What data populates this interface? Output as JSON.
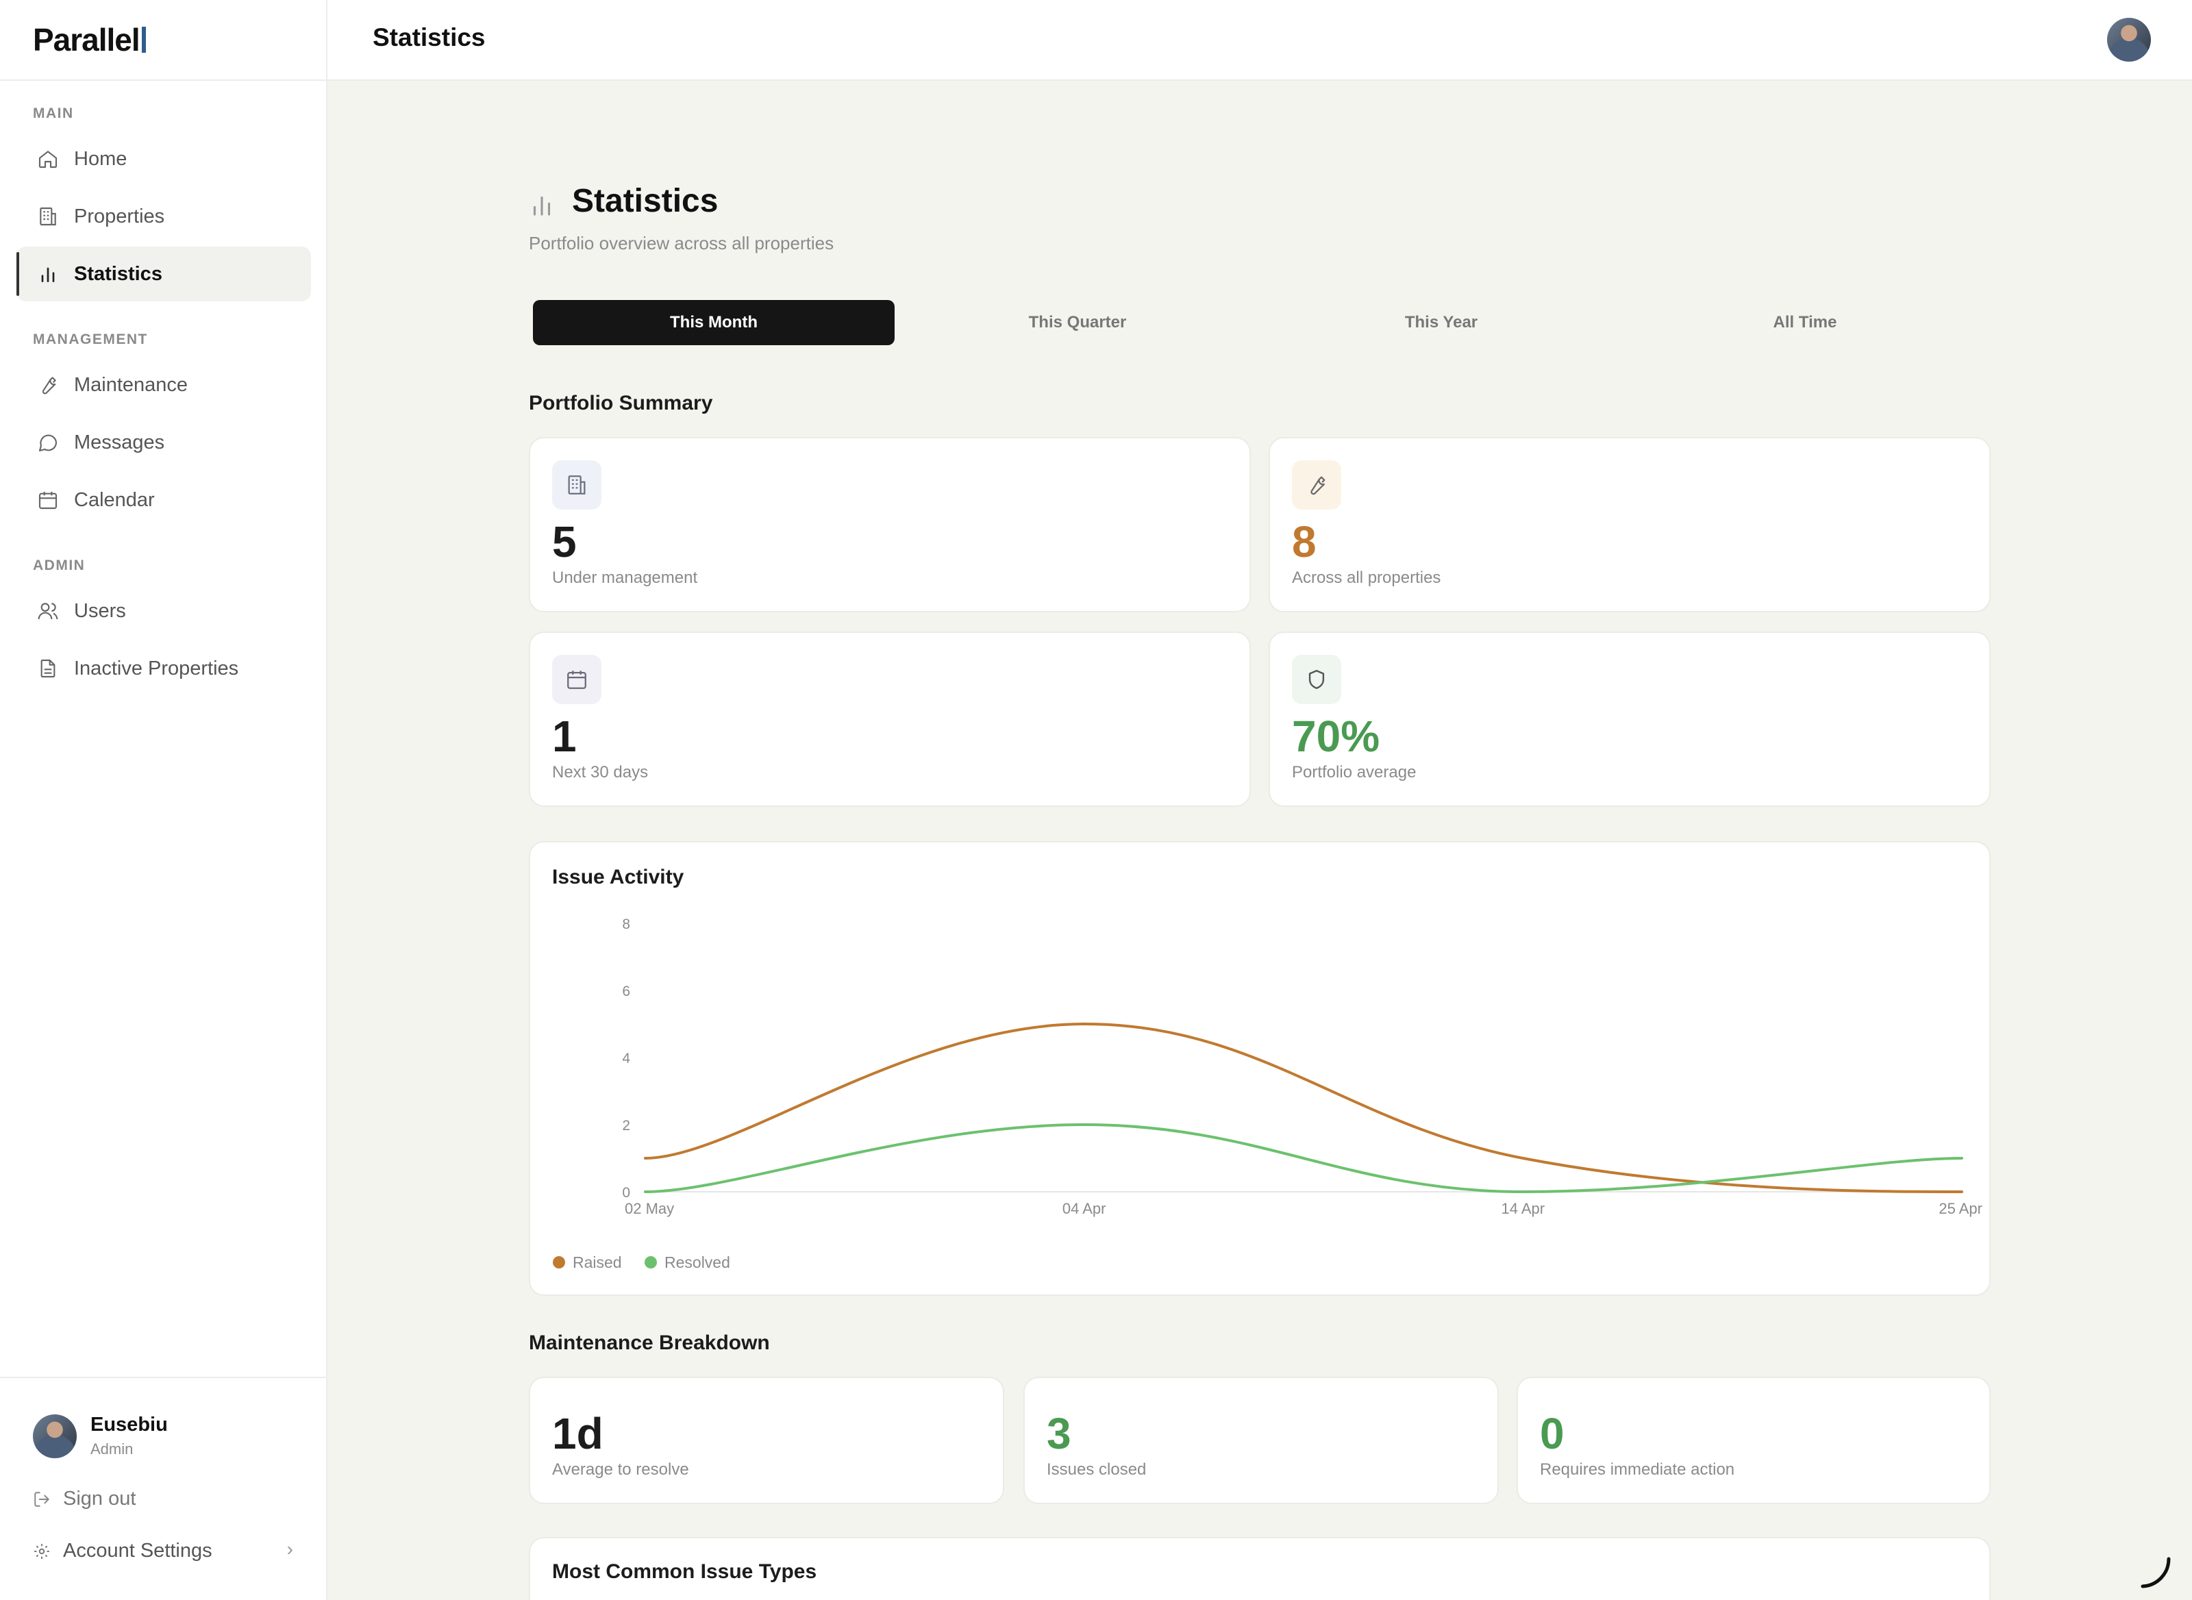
{
  "brand": {
    "name": "Parallel"
  },
  "sidebar": {
    "sections": [
      {
        "label": "MAIN"
      },
      {
        "label": "MANAGEMENT"
      },
      {
        "label": "ADMIN"
      }
    ],
    "items": [
      {
        "label": "Home",
        "icon": "home-icon"
      },
      {
        "label": "Properties",
        "icon": "building-icon"
      },
      {
        "label": "Statistics",
        "icon": "bar-chart-icon",
        "active": true
      },
      {
        "label": "Maintenance",
        "icon": "wrench-icon"
      },
      {
        "label": "Messages",
        "icon": "message-icon"
      },
      {
        "label": "Calendar",
        "icon": "calendar-icon"
      },
      {
        "label": "Users",
        "icon": "users-icon"
      },
      {
        "label": "Inactive Properties",
        "icon": "document-icon"
      }
    ],
    "user": {
      "name": "Eusebiu",
      "role": "Admin"
    },
    "sign_out": "Sign out",
    "account_settings": "Account Settings"
  },
  "topbar": {
    "title": "Statistics"
  },
  "page": {
    "title": "Statistics",
    "subtitle": "Portfolio overview across all properties"
  },
  "tabs": [
    {
      "label": "This Month",
      "active": true
    },
    {
      "label": "This Quarter"
    },
    {
      "label": "This Year"
    },
    {
      "label": "All Time"
    }
  ],
  "portfolio_summary": {
    "title": "Portfolio Summary",
    "cards": [
      {
        "value": "5",
        "label": "Under management",
        "icon": "building-icon",
        "color": "#1c1c1c",
        "icon_bg": "#eef2f8"
      },
      {
        "value": "8",
        "label": "Across all properties",
        "icon": "wrench-icon",
        "color": "#c07a30",
        "icon_bg": "#fbf4e6"
      },
      {
        "value": "1",
        "label": "Next 30 days",
        "icon": "calendar-icon",
        "color": "#1c1c1c",
        "icon_bg": "#f0f0f6"
      },
      {
        "value": "70%",
        "label": "Portfolio average",
        "icon": "shield-icon",
        "color": "#4a9a52",
        "icon_bg": "#eef6ef"
      }
    ]
  },
  "issue_activity": {
    "title": "Issue Activity"
  },
  "chart_data": {
    "type": "line",
    "x": [
      "02 May",
      "04 Apr",
      "14 Apr",
      "25 Apr"
    ],
    "series": [
      {
        "name": "Raised",
        "values": [
          1,
          5,
          1,
          0
        ],
        "color": "#c07a30"
      },
      {
        "name": "Resolved",
        "values": [
          0,
          2,
          0,
          1
        ],
        "color": "#6cc16e"
      }
    ],
    "yticks": [
      "0",
      "2",
      "4",
      "6",
      "8"
    ],
    "ylim": [
      0,
      8
    ],
    "legend": "bottom-left",
    "grid": false
  },
  "maintenance_breakdown": {
    "title": "Maintenance Breakdown",
    "cards": [
      {
        "value": "1d",
        "label": "Average to resolve",
        "color": "#1c1c1c"
      },
      {
        "value": "3",
        "label": "Issues closed",
        "color": "#4a9a52"
      },
      {
        "value": "0",
        "label": "Requires immediate action",
        "color": "#4a9a52"
      }
    ]
  },
  "common_issues": {
    "title": "Most Common Issue Types"
  }
}
